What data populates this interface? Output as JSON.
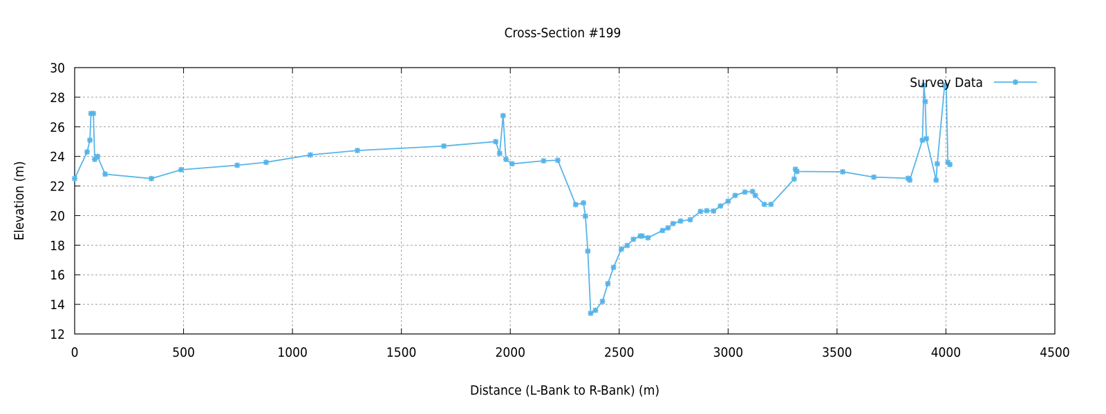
{
  "chart_data": {
    "type": "line",
    "title": "Cross-Section #199",
    "xlabel": "Distance (L-Bank to R-Bank) (m)",
    "ylabel": "Elevation (m)",
    "xlim": [
      0,
      4500
    ],
    "ylim": [
      12,
      30
    ],
    "xticks": [
      0,
      500,
      1000,
      1500,
      2000,
      2500,
      3000,
      3500,
      4000,
      4500
    ],
    "yticks": [
      12,
      14,
      16,
      18,
      20,
      22,
      24,
      26,
      28,
      30
    ],
    "grid": true,
    "legend_position": "top-right",
    "series": [
      {
        "name": "Survey Data",
        "color": "#56b4e9",
        "marker": "asterisk",
        "x": [
          0,
          57,
          70,
          75,
          86,
          92,
          105,
          140,
          352,
          489,
          746,
          879,
          1082,
          1298,
          1695,
          1933,
          1951,
          1967,
          1980,
          2008,
          2153,
          2218,
          2300,
          2336,
          2345,
          2356,
          2369,
          2391,
          2423,
          2448,
          2474,
          2510,
          2537,
          2565,
          2597,
          2605,
          2632,
          2699,
          2724,
          2747,
          2782,
          2826,
          2873,
          2902,
          2933,
          2965,
          3000,
          3032,
          3077,
          3112,
          3125,
          3166,
          3197,
          3303,
          3309,
          3316,
          3526,
          3669,
          3826,
          3834,
          3892,
          3899,
          3905,
          3910,
          3955,
          3960,
          3994,
          4001,
          4009,
          4018
        ],
        "y": [
          22.5,
          24.3,
          25.1,
          26.9,
          26.9,
          23.8,
          24.0,
          22.8,
          22.5,
          23.1,
          23.4,
          23.6,
          24.1,
          24.4,
          24.7,
          25.0,
          24.2,
          26.75,
          23.8,
          23.5,
          23.7,
          23.74,
          20.74,
          20.86,
          19.96,
          17.6,
          13.4,
          13.6,
          14.2,
          15.4,
          16.5,
          17.74,
          17.98,
          18.4,
          18.62,
          18.62,
          18.5,
          18.99,
          19.17,
          19.46,
          19.63,
          19.72,
          20.28,
          20.33,
          20.31,
          20.65,
          20.97,
          21.36,
          21.59,
          21.63,
          21.36,
          20.76,
          20.76,
          22.47,
          23.13,
          22.98,
          22.96,
          22.6,
          22.52,
          22.4,
          25.1,
          28.8,
          27.7,
          25.2,
          22.4,
          23.5,
          28.8,
          28.8,
          23.6,
          23.45
        ]
      }
    ]
  }
}
